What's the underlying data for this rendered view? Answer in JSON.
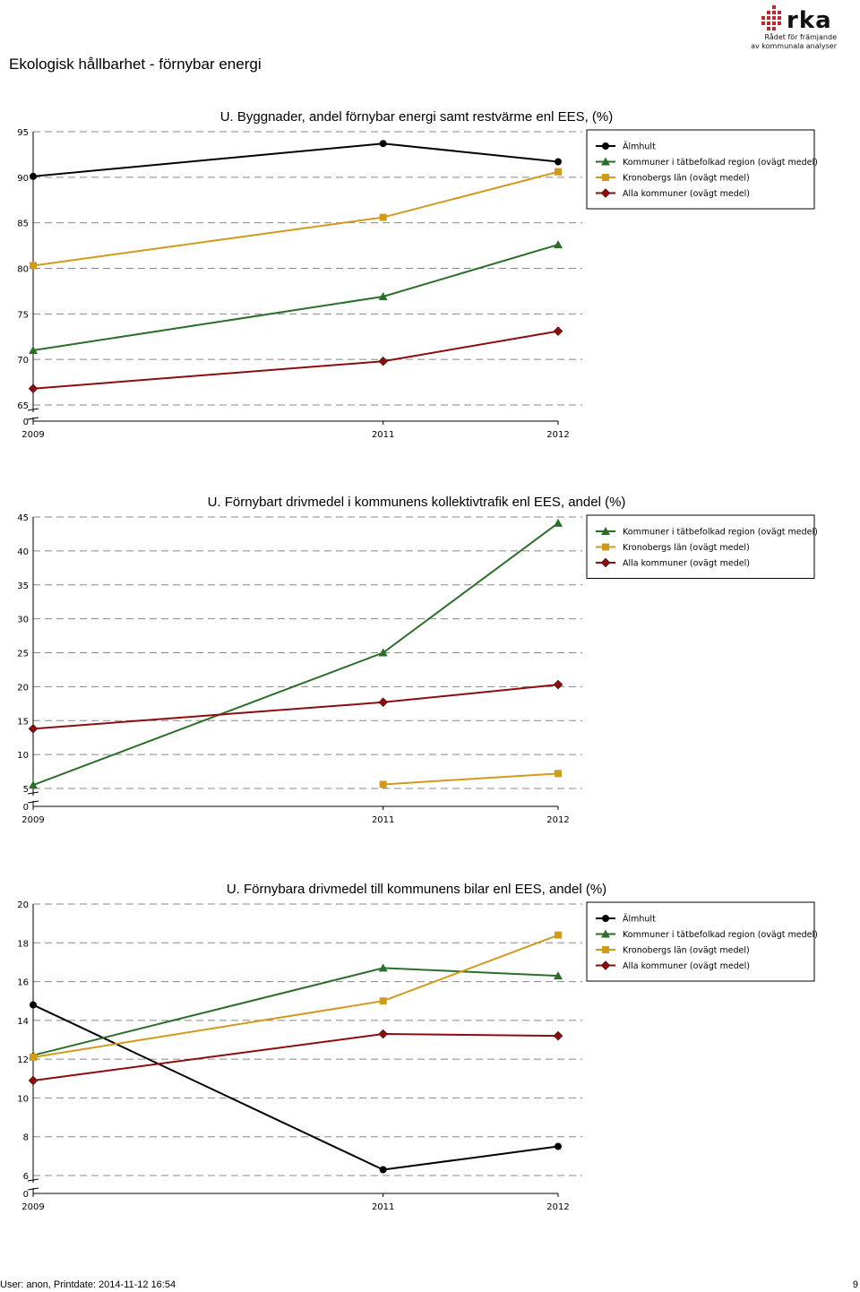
{
  "page": {
    "title": "Ekologisk hållbarhet - förnybar energi",
    "logo": {
      "word": "rka",
      "line1": "Rådet för främjande",
      "line2": "av kommunala analyser"
    },
    "footer": {
      "left": "User: anon, Printdate: 2014-11-12 16:54",
      "right": "9"
    }
  },
  "colors": {
    "Älmhult": "#000000",
    "Kommuner i tätbefolkad region (ovägt medel)": "#2a6e2a",
    "Kronobergs län (ovägt medel)": "#d09a1c",
    "Alla kommuner (ovägt medel)": "#8b0d0d"
  },
  "chart_data": [
    {
      "type": "line",
      "title": "U. Byggnader, andel förnybar energi samt restvärme enl EES, (%)",
      "categories": [
        "2009",
        "2011",
        "2012"
      ],
      "x": [
        2009,
        2011,
        2012
      ],
      "yticks": [
        "95",
        "90",
        "85",
        "80",
        "75",
        "70",
        "65",
        "0"
      ],
      "ylim": [
        65,
        95
      ],
      "axis_break": true,
      "grid": true,
      "legend": "top-right",
      "series": [
        {
          "name": "Älmhult",
          "marker": "circle",
          "values": [
            90.1,
            93.7,
            91.7
          ]
        },
        {
          "name": "Kommuner i tätbefolkad region (ovägt medel)",
          "marker": "triangle",
          "values": [
            71.0,
            76.9,
            82.6
          ]
        },
        {
          "name": "Kronobergs län (ovägt medel)",
          "marker": "square",
          "values": [
            80.3,
            85.6,
            90.6
          ]
        },
        {
          "name": "Alla kommuner (ovägt medel)",
          "marker": "diamond",
          "values": [
            66.8,
            69.8,
            73.1
          ]
        }
      ]
    },
    {
      "type": "line",
      "title": "U. Förnybart drivmedel i kommunens kollektivtrafik enl EES, andel (%)",
      "categories": [
        "2009",
        "2011",
        "2012"
      ],
      "x": [
        2009,
        2011,
        2012
      ],
      "yticks": [
        "45",
        "40",
        "35",
        "30",
        "25",
        "20",
        "15",
        "10",
        "5",
        "0"
      ],
      "ylim": [
        5,
        45
      ],
      "axis_break": true,
      "grid": true,
      "legend": "top-right",
      "series": [
        {
          "name": "Kommuner i tätbefolkad region (ovägt medel)",
          "marker": "triangle",
          "values": [
            5.5,
            25.0,
            44.1
          ]
        },
        {
          "name": "Kronobergs län (ovägt medel)",
          "marker": "square",
          "values": [
            null,
            5.6,
            7.2
          ]
        },
        {
          "name": "Alla kommuner (ovägt medel)",
          "marker": "diamond",
          "values": [
            13.8,
            17.7,
            20.3
          ]
        }
      ]
    },
    {
      "type": "line",
      "title": "U. Förnybara drivmedel till kommunens bilar enl EES, andel (%)",
      "categories": [
        "2009",
        "2011",
        "2012"
      ],
      "x": [
        2009,
        2011,
        2012
      ],
      "yticks": [
        "20",
        "18",
        "16",
        "14",
        "12",
        "10",
        "8",
        "6",
        "0"
      ],
      "ylim": [
        6,
        20
      ],
      "axis_break": true,
      "grid": true,
      "legend": "top-right",
      "series": [
        {
          "name": "Älmhult",
          "marker": "circle",
          "values": [
            14.8,
            6.3,
            7.5
          ]
        },
        {
          "name": "Kommuner i tätbefolkad region (ovägt medel)",
          "marker": "triangle",
          "values": [
            12.2,
            16.7,
            16.3
          ]
        },
        {
          "name": "Kronobergs län (ovägt medel)",
          "marker": "square",
          "values": [
            12.1,
            15.0,
            18.4
          ]
        },
        {
          "name": "Alla kommuner (ovägt medel)",
          "marker": "diamond",
          "values": [
            10.9,
            13.3,
            13.2
          ]
        }
      ]
    }
  ]
}
